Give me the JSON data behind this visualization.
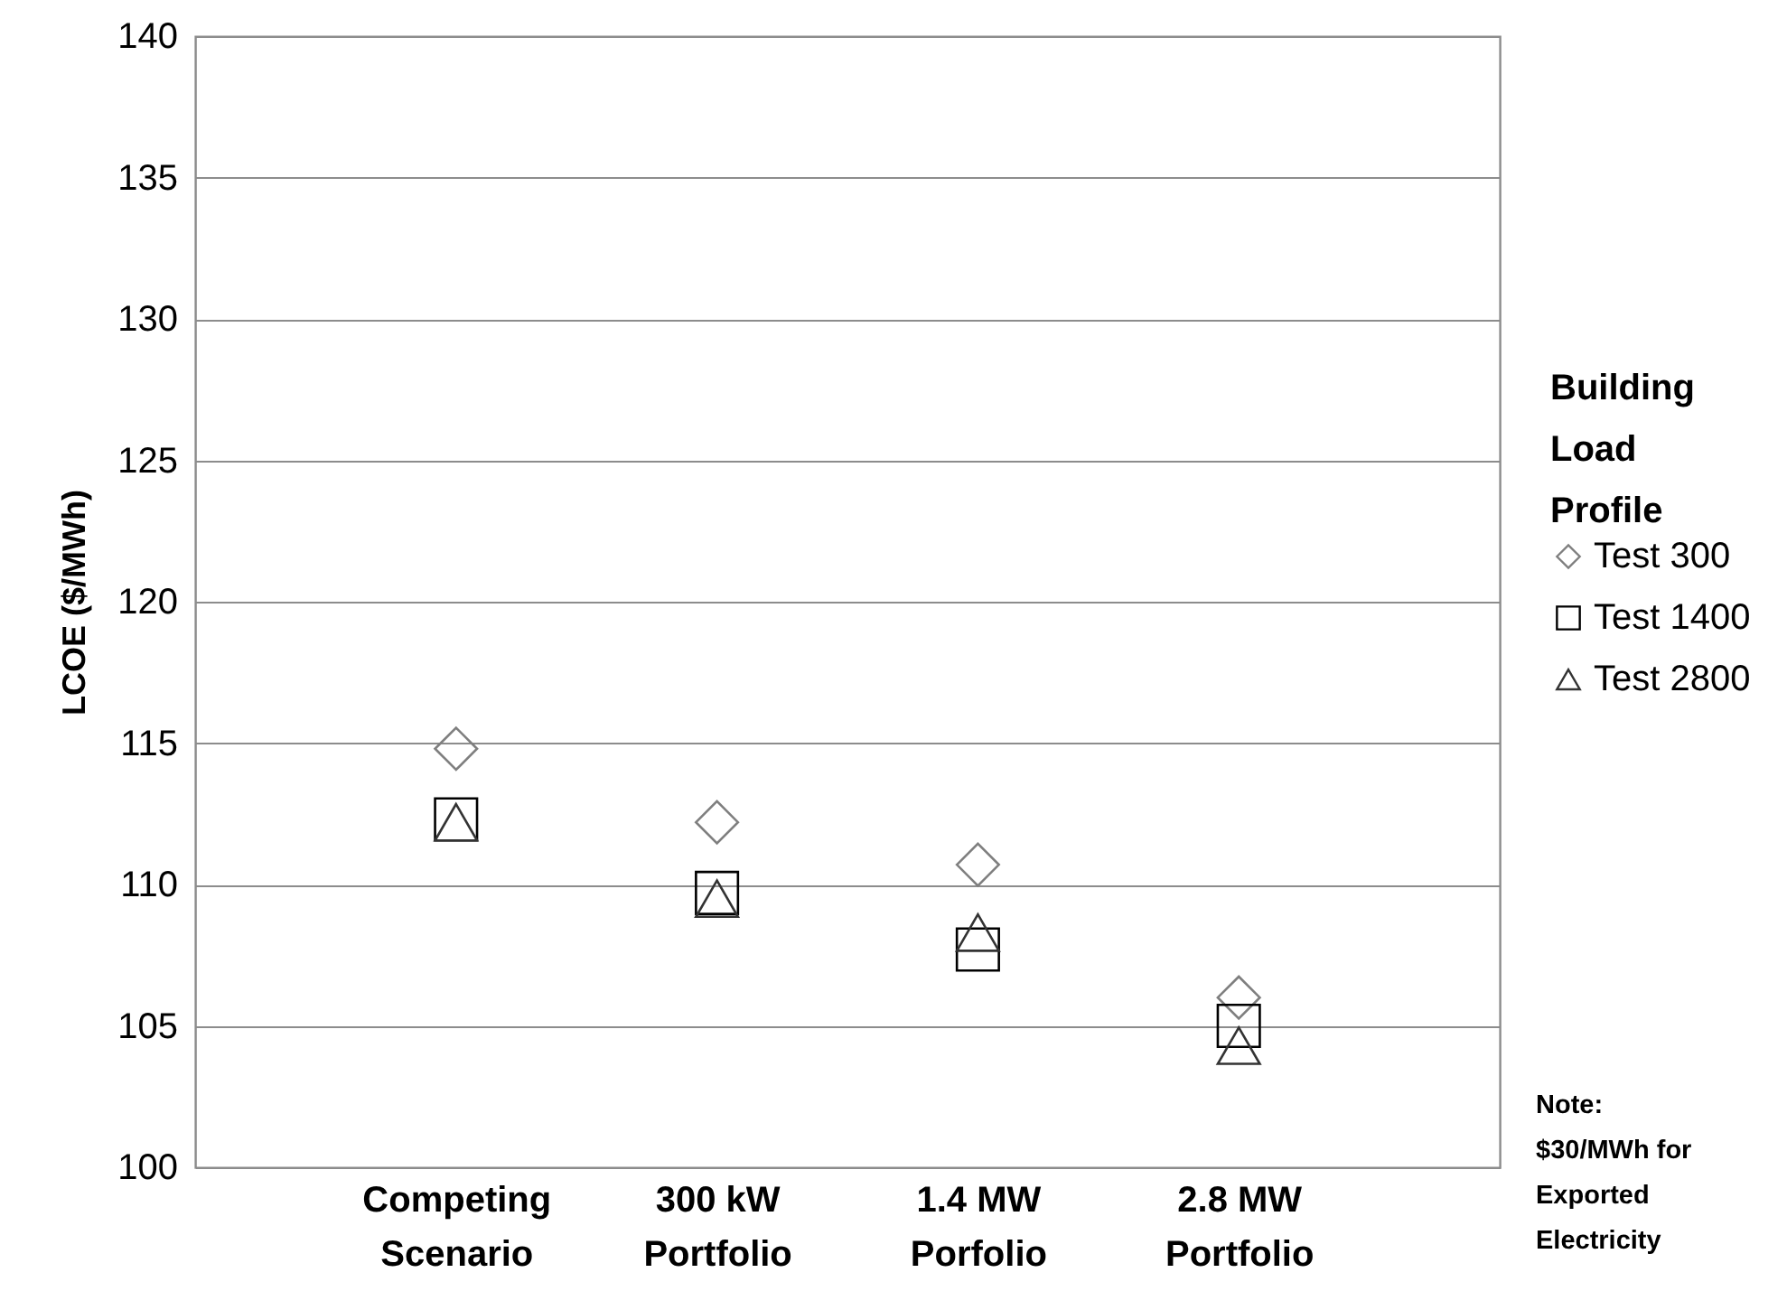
{
  "chart_data": {
    "type": "scatter",
    "ylabel": "LCOE ($/MWh)",
    "legend_title": "Building Load Profile",
    "categories": [
      "Competing\nScenario",
      "300 kW\nPortfolio",
      "1.4 MW\nPorfolio",
      "2.8 MW\nPortfolio"
    ],
    "series": [
      {
        "name": "Test 300",
        "color": "#7f7f7f",
        "marker": "diamond",
        "values": [
          114.8,
          112.2,
          110.7,
          106.0
        ]
      },
      {
        "name": "Test 1400",
        "color": "#000000",
        "marker": "square",
        "values": [
          112.3,
          109.7,
          107.7,
          105.0
        ]
      },
      {
        "name": "Test 2800",
        "color": "#333333",
        "marker": "triangle",
        "values": [
          112.2,
          109.5,
          108.3,
          104.3
        ]
      }
    ],
    "ylim": [
      100,
      140
    ],
    "yticks": [
      100,
      105,
      110,
      115,
      120,
      125,
      130,
      135,
      140
    ],
    "grid": "y",
    "legend": "right",
    "annotations": [
      "Note: $30/MWh for Exported Electricity"
    ]
  }
}
